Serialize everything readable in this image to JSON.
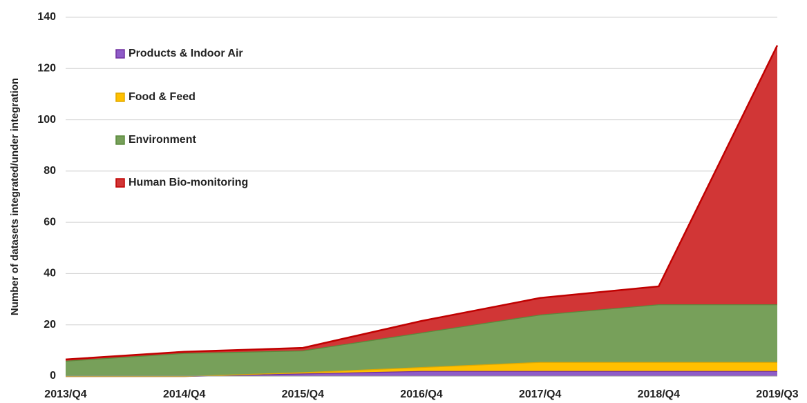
{
  "chart_data": {
    "type": "stacked_area",
    "y_label": "Number of datasets integrated/under integration",
    "categories": [
      "2013/Q4",
      "2014/Q4",
      "2015/Q4",
      "2016/Q4",
      "2017/Q4",
      "2018/Q4",
      "2019/Q3"
    ],
    "series": [
      {
        "name": "Products & Indoor Air",
        "color": "#8e5cc8",
        "edge": "#7030a0",
        "values": [
          0,
          0,
          1,
          2,
          2,
          2,
          2
        ]
      },
      {
        "name": "Food & Feed",
        "color": "#ffc000",
        "edge": "#e0a800",
        "values": [
          0,
          0,
          0.5,
          1.5,
          3.5,
          3.5,
          3.5
        ]
      },
      {
        "name": "Environment",
        "color": "#77a05a",
        "edge": "#5a8a3c",
        "values": [
          6,
          9,
          8.5,
          13.5,
          18.5,
          22.5,
          22.5
        ]
      },
      {
        "name": "Human Bio-monitoring",
        "color": "#d13636",
        "edge": "#c00000",
        "values": [
          0.5,
          0.5,
          1,
          4.5,
          6.5,
          7,
          101
        ]
      }
    ],
    "ylim": [
      0,
      140
    ],
    "yticks": [
      0,
      20,
      40,
      60,
      80,
      100,
      120,
      140
    ],
    "grid": true
  }
}
